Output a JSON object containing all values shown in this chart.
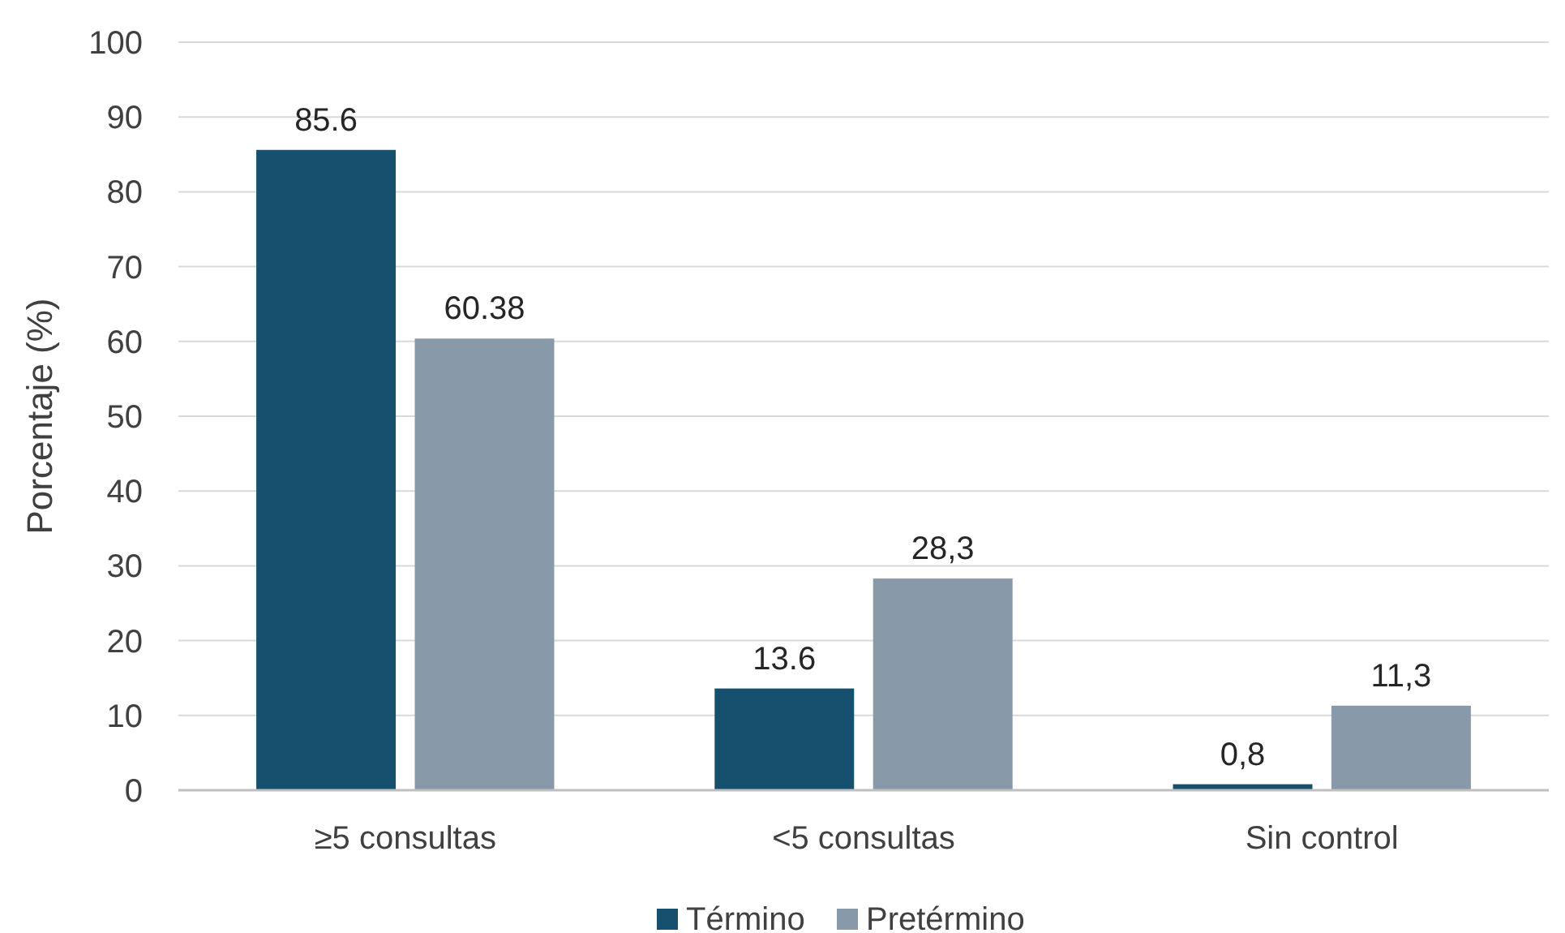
{
  "chart_data": {
    "type": "bar",
    "ylabel": "Porcentaje (%)",
    "categories": [
      "≥5 consultas",
      "<5 consultas",
      "Sin control"
    ],
    "series": [
      {
        "name": "Término",
        "color": "#15506e",
        "values": [
          85.6,
          13.6,
          0.8
        ],
        "value_labels": [
          "85.6",
          "13.6",
          "0,8"
        ]
      },
      {
        "name": "Pretérmino",
        "color": "#8899aa",
        "values": [
          60.38,
          28.3,
          11.3
        ],
        "value_labels": [
          "60.38",
          "28,3",
          "11,3"
        ]
      }
    ],
    "ylim": [
      0,
      100
    ],
    "yticks": [
      0,
      10,
      20,
      30,
      40,
      50,
      60,
      70,
      80,
      90,
      100
    ],
    "grid": "y",
    "legend": "bottom"
  }
}
